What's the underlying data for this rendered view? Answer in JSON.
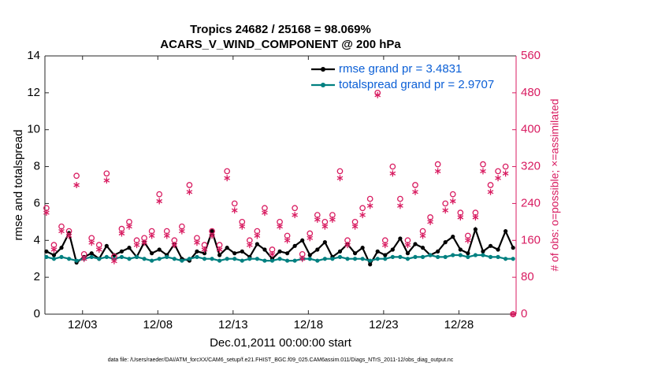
{
  "chart_data": {
    "type": "line",
    "title": "Tropics 24682 / 25168 = 98.069%",
    "subtitle": "ACARS_V_WIND_COMPONENT @ 200 hPa",
    "x_label": "Dec.01,2011 00:00:00 start",
    "y_label": "rmse and totalspread",
    "y2_label": "# of obs: o=possible; ×=assimilated",
    "footnote": "data file: /Users/raeder/DAI/ATM_forcXX/CAM6_setup/f.e21.FHIST_BGC.f09_025.CAM6assim.011/Diags_NTrS_2011-12/obs_diag_output.nc",
    "x": [
      -0.4,
      0.1,
      0.6,
      1.1,
      1.6,
      2.1,
      2.6,
      3.1,
      3.6,
      4.1,
      4.6,
      5.1,
      5.6,
      6.1,
      6.6,
      7.1,
      7.6,
      8.1,
      8.6,
      9.1,
      9.6,
      10.1,
      10.6,
      11.1,
      11.6,
      12.1,
      12.6,
      13.1,
      13.6,
      14.1,
      14.6,
      15.1,
      15.6,
      16.1,
      16.6,
      17.1,
      17.6,
      18.1,
      18.6,
      19.1,
      19.6,
      20.1,
      20.6,
      21.1,
      21.6,
      22.1,
      22.6,
      23.1,
      23.6,
      24.1,
      24.6,
      25.1,
      25.6,
      26.1,
      26.6,
      27.1,
      27.6,
      28.1,
      28.6,
      29.1,
      29.6,
      30.1,
      30.6
    ],
    "xlim": [
      -0.5,
      30.8
    ],
    "xticks": [
      {
        "value": 2,
        "label": "12/03"
      },
      {
        "value": 7,
        "label": "12/08"
      },
      {
        "value": 12,
        "label": "12/13"
      },
      {
        "value": 17,
        "label": "12/18"
      },
      {
        "value": 22,
        "label": "12/23"
      },
      {
        "value": 27,
        "label": "12/28"
      }
    ],
    "ylim": [
      0,
      14
    ],
    "yticks": [
      0,
      2,
      4,
      6,
      8,
      10,
      12,
      14
    ],
    "y2lim": [
      0,
      560
    ],
    "y2ticks": [
      0,
      80,
      160,
      240,
      320,
      400,
      480,
      560
    ],
    "y2_color": "#d81b60",
    "grid": false,
    "legend": "top-right",
    "series": [
      {
        "name": "rmse grand pr = 3.4831",
        "color": "#000000",
        "values": [
          3.4,
          3.2,
          3.6,
          4.4,
          2.8,
          3.1,
          3.3,
          3.0,
          3.7,
          3.2,
          3.4,
          3.6,
          3.1,
          3.9,
          3.3,
          3.5,
          3.2,
          3.8,
          3.0,
          2.9,
          3.4,
          3.3,
          4.5,
          3.2,
          3.6,
          3.3,
          3.4,
          3.1,
          3.8,
          3.5,
          3.0,
          3.4,
          3.3,
          3.7,
          4.0,
          3.2,
          3.5,
          3.9,
          3.1,
          3.4,
          3.8,
          3.3,
          3.6,
          2.7,
          3.4,
          3.2,
          3.5,
          4.1,
          3.3,
          3.8,
          3.6,
          3.2,
          3.4,
          3.9,
          4.2,
          3.5,
          3.3,
          4.6,
          3.4,
          3.7,
          3.5,
          4.5,
          3.6
        ]
      },
      {
        "name": "totalspread grand pr = 2.9707",
        "color": "#008080",
        "values": [
          3.1,
          3.0,
          3.1,
          3.0,
          2.9,
          3.0,
          3.1,
          3.0,
          3.1,
          3.0,
          3.1,
          3.0,
          3.1,
          3.0,
          2.9,
          3.0,
          3.1,
          3.0,
          2.9,
          3.0,
          3.1,
          3.0,
          3.0,
          2.9,
          3.0,
          3.0,
          2.9,
          3.0,
          3.0,
          2.9,
          2.9,
          3.0,
          2.9,
          2.9,
          3.0,
          3.0,
          2.9,
          3.0,
          3.0,
          3.1,
          3.0,
          3.0,
          3.0,
          2.9,
          3.0,
          3.0,
          3.1,
          3.1,
          3.0,
          3.1,
          3.1,
          3.2,
          3.1,
          3.1,
          3.2,
          3.2,
          3.1,
          3.2,
          3.2,
          3.1,
          3.1,
          3.0,
          3.0
        ]
      },
      {
        "color": "#d81b60",
        "axis": "y2",
        "marker": "o",
        "values": [
          230,
          150,
          190,
          180,
          300,
          130,
          165,
          150,
          305,
          125,
          185,
          200,
          160,
          165,
          180,
          260,
          180,
          160,
          190,
          280,
          165,
          150,
          180,
          150,
          310,
          240,
          200,
          160,
          180,
          230,
          140,
          200,
          170,
          230,
          130,
          175,
          215,
          200,
          215,
          310,
          160,
          200,
          230,
          250,
          480,
          160,
          320,
          250,
          160,
          280,
          180,
          210,
          325,
          240,
          260,
          220,
          170,
          220,
          325,
          280,
          310,
          320,
          0
        ]
      },
      {
        "color": "#d81b60",
        "axis": "y2",
        "marker": "*",
        "values": [
          220,
          140,
          180,
          170,
          280,
          120,
          155,
          140,
          290,
          115,
          175,
          190,
          150,
          155,
          170,
          245,
          170,
          150,
          180,
          265,
          155,
          140,
          170,
          140,
          295,
          225,
          190,
          150,
          170,
          220,
          130,
          190,
          160,
          215,
          120,
          165,
          205,
          190,
          205,
          295,
          150,
          190,
          215,
          235,
          475,
          150,
          305,
          235,
          150,
          265,
          170,
          200,
          310,
          225,
          245,
          210,
          160,
          210,
          310,
          265,
          295,
          305,
          0
        ]
      }
    ]
  }
}
